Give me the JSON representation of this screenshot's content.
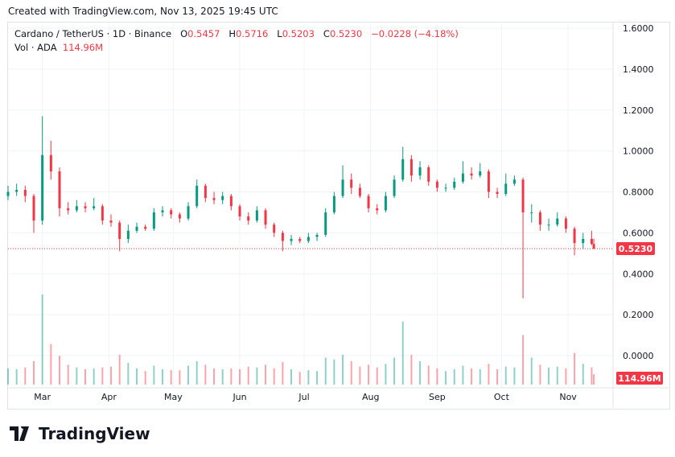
{
  "created": "Created with TradingView.com, Nov 13, 2025 19:45 UTC",
  "legend": {
    "symbol": "Cardano / TetherUS · 1D · Binance",
    "o_label": "O",
    "o": "0.5457",
    "h_label": "H",
    "h": "0.5716",
    "l_label": "L",
    "l": "0.5203",
    "c_label": "C",
    "c": "0.5230",
    "change": "−0.0228 (−4.18%)",
    "vol_label": "Vol · ADA",
    "vol": "114.96M"
  },
  "logo": "TradingView",
  "colors": {
    "up": "#089981",
    "down": "#f23645",
    "grid": "#f0f3fa"
  },
  "chart_data": {
    "type": "candlestick",
    "ylim": [
      0,
      1.6
    ],
    "y_ticks": [
      "1.6000",
      "1.4000",
      "1.2000",
      "1.0000",
      "0.8000",
      "0.6000",
      "0.4000",
      "0.2000",
      "0.0000"
    ],
    "x_ticks": [
      [
        "Mar",
        "2025-03-01"
      ],
      [
        "Apr",
        "2025-04-01"
      ],
      [
        "May",
        "2025-05-01"
      ],
      [
        "Jun",
        "2025-06-01"
      ],
      [
        "Jul",
        "2025-07-01"
      ],
      [
        "Aug",
        "2025-08-01"
      ],
      [
        "Sep",
        "2025-09-01"
      ],
      [
        "Oct",
        "2025-10-01"
      ],
      [
        "Nov",
        "2025-11-01"
      ]
    ],
    "last_price_label": "0.5230",
    "last_volume_label": "114.96M",
    "columns": [
      "date",
      "open",
      "high",
      "low",
      "close",
      "volume_M"
    ],
    "candles": [
      [
        "2025-02-13",
        0.78,
        0.83,
        0.76,
        0.8,
        180
      ],
      [
        "2025-02-17",
        0.8,
        0.84,
        0.78,
        0.81,
        170
      ],
      [
        "2025-02-21",
        0.81,
        0.83,
        0.75,
        0.78,
        190
      ],
      [
        "2025-02-25",
        0.78,
        0.79,
        0.6,
        0.66,
        260
      ],
      [
        "2025-03-01",
        0.66,
        1.17,
        0.64,
        0.98,
        1000
      ],
      [
        "2025-03-05",
        0.98,
        1.05,
        0.86,
        0.9,
        450
      ],
      [
        "2025-03-09",
        0.9,
        0.92,
        0.68,
        0.72,
        320
      ],
      [
        "2025-03-13",
        0.72,
        0.75,
        0.69,
        0.71,
        220
      ],
      [
        "2025-03-17",
        0.71,
        0.76,
        0.7,
        0.73,
        190
      ],
      [
        "2025-03-21",
        0.73,
        0.75,
        0.7,
        0.72,
        170
      ],
      [
        "2025-03-25",
        0.72,
        0.77,
        0.71,
        0.73,
        180
      ],
      [
        "2025-03-29",
        0.73,
        0.74,
        0.64,
        0.66,
        190
      ],
      [
        "2025-04-02",
        0.66,
        0.69,
        0.63,
        0.65,
        200
      ],
      [
        "2025-04-06",
        0.65,
        0.66,
        0.51,
        0.57,
        330
      ],
      [
        "2025-04-10",
        0.57,
        0.64,
        0.55,
        0.61,
        240
      ],
      [
        "2025-04-14",
        0.61,
        0.65,
        0.6,
        0.63,
        180
      ],
      [
        "2025-04-18",
        0.63,
        0.64,
        0.61,
        0.62,
        150
      ],
      [
        "2025-04-22",
        0.62,
        0.72,
        0.61,
        0.7,
        210
      ],
      [
        "2025-04-26",
        0.7,
        0.73,
        0.68,
        0.71,
        170
      ],
      [
        "2025-04-30",
        0.71,
        0.72,
        0.67,
        0.69,
        160
      ],
      [
        "2025-05-04",
        0.69,
        0.7,
        0.65,
        0.67,
        160
      ],
      [
        "2025-05-08",
        0.67,
        0.75,
        0.66,
        0.73,
        210
      ],
      [
        "2025-05-12",
        0.73,
        0.86,
        0.72,
        0.83,
        260
      ],
      [
        "2025-05-16",
        0.83,
        0.84,
        0.75,
        0.77,
        220
      ],
      [
        "2025-05-20",
        0.77,
        0.8,
        0.74,
        0.76,
        180
      ],
      [
        "2025-05-24",
        0.76,
        0.8,
        0.74,
        0.78,
        170
      ],
      [
        "2025-05-28",
        0.78,
        0.79,
        0.71,
        0.73,
        180
      ],
      [
        "2025-06-01",
        0.73,
        0.74,
        0.66,
        0.68,
        170
      ],
      [
        "2025-06-05",
        0.68,
        0.7,
        0.64,
        0.66,
        200
      ],
      [
        "2025-06-09",
        0.66,
        0.73,
        0.65,
        0.71,
        190
      ],
      [
        "2025-06-13",
        0.71,
        0.72,
        0.62,
        0.64,
        220
      ],
      [
        "2025-06-17",
        0.64,
        0.65,
        0.58,
        0.6,
        180
      ],
      [
        "2025-06-21",
        0.6,
        0.61,
        0.51,
        0.56,
        250
      ],
      [
        "2025-06-25",
        0.56,
        0.59,
        0.54,
        0.57,
        170
      ],
      [
        "2025-06-29",
        0.57,
        0.58,
        0.55,
        0.56,
        140
      ],
      [
        "2025-07-03",
        0.56,
        0.6,
        0.55,
        0.58,
        160
      ],
      [
        "2025-07-07",
        0.58,
        0.6,
        0.56,
        0.59,
        150
      ],
      [
        "2025-07-11",
        0.59,
        0.72,
        0.58,
        0.7,
        300
      ],
      [
        "2025-07-15",
        0.7,
        0.8,
        0.69,
        0.78,
        280
      ],
      [
        "2025-07-19",
        0.78,
        0.93,
        0.77,
        0.86,
        330
      ],
      [
        "2025-07-23",
        0.86,
        0.89,
        0.79,
        0.82,
        260
      ],
      [
        "2025-07-27",
        0.82,
        0.84,
        0.77,
        0.78,
        200
      ],
      [
        "2025-07-31",
        0.78,
        0.79,
        0.7,
        0.72,
        220
      ],
      [
        "2025-08-04",
        0.72,
        0.74,
        0.69,
        0.71,
        190
      ],
      [
        "2025-08-08",
        0.71,
        0.8,
        0.7,
        0.78,
        230
      ],
      [
        "2025-08-12",
        0.78,
        0.88,
        0.77,
        0.86,
        300
      ],
      [
        "2025-08-16",
        0.86,
        1.02,
        0.85,
        0.96,
        700
      ],
      [
        "2025-08-20",
        0.96,
        0.98,
        0.85,
        0.88,
        330
      ],
      [
        "2025-08-24",
        0.88,
        0.95,
        0.86,
        0.92,
        260
      ],
      [
        "2025-08-28",
        0.92,
        0.93,
        0.83,
        0.85,
        210
      ],
      [
        "2025-09-01",
        0.85,
        0.86,
        0.8,
        0.82,
        180
      ],
      [
        "2025-09-05",
        0.82,
        0.84,
        0.8,
        0.82,
        150
      ],
      [
        "2025-09-09",
        0.82,
        0.87,
        0.81,
        0.85,
        170
      ],
      [
        "2025-09-13",
        0.85,
        0.95,
        0.84,
        0.89,
        210
      ],
      [
        "2025-09-17",
        0.89,
        0.92,
        0.86,
        0.88,
        180
      ],
      [
        "2025-09-21",
        0.88,
        0.94,
        0.87,
        0.9,
        170
      ],
      [
        "2025-09-25",
        0.9,
        0.91,
        0.77,
        0.8,
        230
      ],
      [
        "2025-09-29",
        0.8,
        0.82,
        0.77,
        0.79,
        170
      ],
      [
        "2025-10-03",
        0.79,
        0.89,
        0.78,
        0.84,
        200
      ],
      [
        "2025-10-07",
        0.84,
        0.88,
        0.83,
        0.86,
        190
      ],
      [
        "2025-10-11",
        0.86,
        0.87,
        0.28,
        0.7,
        550
      ],
      [
        "2025-10-15",
        0.7,
        0.74,
        0.65,
        0.7,
        300
      ],
      [
        "2025-10-19",
        0.7,
        0.71,
        0.61,
        0.64,
        220
      ],
      [
        "2025-10-23",
        0.64,
        0.67,
        0.61,
        0.64,
        190
      ],
      [
        "2025-10-27",
        0.64,
        0.7,
        0.63,
        0.67,
        200
      ],
      [
        "2025-10-31",
        0.67,
        0.68,
        0.6,
        0.62,
        180
      ],
      [
        "2025-11-04",
        0.62,
        0.63,
        0.49,
        0.55,
        350
      ],
      [
        "2025-11-08",
        0.55,
        0.6,
        0.52,
        0.57,
        230
      ],
      [
        "2025-11-12",
        0.57,
        0.61,
        0.54,
        0.5457,
        190
      ],
      [
        "2025-11-13",
        0.5457,
        0.5716,
        0.5203,
        0.523,
        114.96
      ]
    ]
  }
}
